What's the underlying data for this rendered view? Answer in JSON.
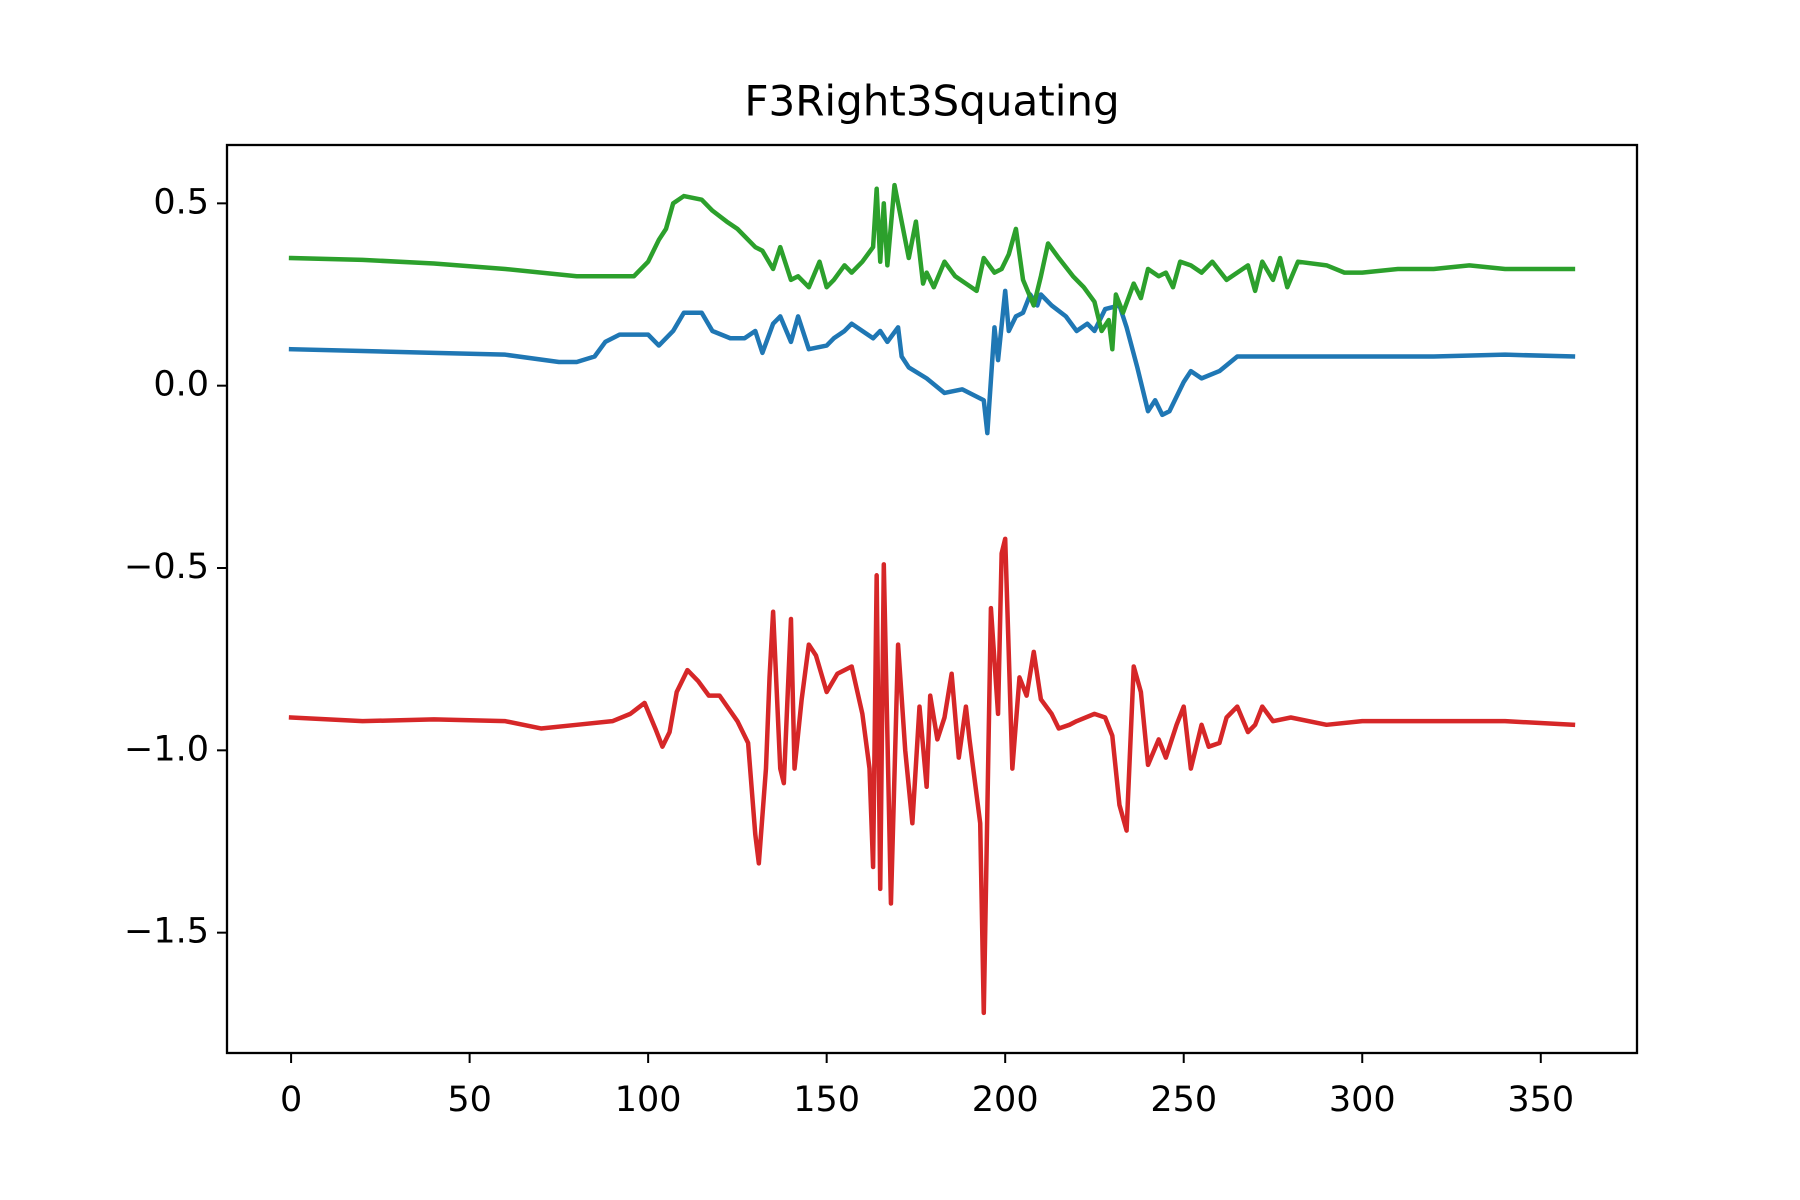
{
  "chart_data": {
    "type": "line",
    "title": "F3Right3Squating",
    "xlim": [
      -17.95,
      376.95
    ],
    "ylim": [
      -1.83,
      0.66
    ],
    "xticks": [
      0,
      50,
      100,
      150,
      200,
      250,
      300,
      350
    ],
    "yticks": [
      {
        "value": -1.5,
        "label": "−1.5"
      },
      {
        "value": -1.0,
        "label": "−1.0"
      },
      {
        "value": -0.5,
        "label": "−0.5"
      },
      {
        "value": 0.0,
        "label": "0.0"
      },
      {
        "value": 0.5,
        "label": "0.5"
      }
    ],
    "series": [
      {
        "color": "#1f77b4",
        "x": [
          0,
          20,
          40,
          60,
          75,
          80,
          85,
          88,
          92,
          100,
          103,
          107,
          110,
          115,
          118,
          123,
          127,
          130,
          132,
          135,
          137,
          140,
          142,
          145,
          150,
          152,
          155,
          157,
          160,
          163,
          165,
          167,
          170,
          171,
          173,
          178,
          183,
          188,
          192,
          194,
          195,
          197,
          198,
          200,
          201,
          203,
          205,
          207,
          209,
          210,
          213,
          217,
          220,
          223,
          225,
          228,
          232,
          234,
          237,
          240,
          242,
          244,
          246,
          250,
          252,
          255,
          260,
          265,
          270,
          280,
          300,
          320,
          340,
          359
        ],
        "values": [
          0.1,
          0.095,
          0.09,
          0.085,
          0.065,
          0.065,
          0.08,
          0.12,
          0.14,
          0.14,
          0.11,
          0.15,
          0.2,
          0.2,
          0.15,
          0.13,
          0.13,
          0.15,
          0.09,
          0.17,
          0.19,
          0.12,
          0.19,
          0.1,
          0.11,
          0.13,
          0.15,
          0.17,
          0.15,
          0.13,
          0.15,
          0.12,
          0.16,
          0.08,
          0.05,
          0.02,
          -0.02,
          -0.01,
          -0.03,
          -0.04,
          -0.13,
          0.16,
          0.07,
          0.26,
          0.15,
          0.19,
          0.2,
          0.25,
          0.22,
          0.25,
          0.22,
          0.19,
          0.15,
          0.17,
          0.15,
          0.21,
          0.22,
          0.16,
          0.05,
          -0.07,
          -0.04,
          -0.08,
          -0.07,
          0.01,
          0.04,
          0.02,
          0.04,
          0.08,
          0.08,
          0.08,
          0.08,
          0.08,
          0.085,
          0.08
        ]
      },
      {
        "color": "#2ca02c",
        "x": [
          0,
          20,
          40,
          60,
          80,
          90,
          96,
          100,
          103,
          105,
          107,
          110,
          115,
          118,
          122,
          125,
          130,
          132,
          135,
          137,
          140,
          142,
          145,
          148,
          150,
          152,
          155,
          157,
          160,
          163,
          164,
          165,
          166,
          167,
          169,
          171,
          173,
          175,
          177,
          178,
          180,
          183,
          186,
          189,
          192,
          194,
          197,
          199,
          201,
          203,
          205,
          208,
          210,
          212,
          215,
          219,
          222,
          225,
          227,
          229,
          230,
          231,
          233,
          236,
          238,
          240,
          243,
          245,
          247,
          249,
          252,
          255,
          258,
          262,
          265,
          268,
          270,
          272,
          275,
          277,
          279,
          282,
          290,
          295,
          300,
          310,
          320,
          330,
          340,
          350,
          359
        ],
        "values": [
          0.35,
          0.345,
          0.335,
          0.32,
          0.3,
          0.3,
          0.3,
          0.34,
          0.4,
          0.43,
          0.5,
          0.52,
          0.51,
          0.48,
          0.45,
          0.43,
          0.38,
          0.37,
          0.32,
          0.38,
          0.29,
          0.3,
          0.27,
          0.34,
          0.27,
          0.29,
          0.33,
          0.31,
          0.34,
          0.38,
          0.54,
          0.34,
          0.5,
          0.33,
          0.55,
          0.45,
          0.35,
          0.45,
          0.28,
          0.31,
          0.27,
          0.34,
          0.3,
          0.28,
          0.26,
          0.35,
          0.31,
          0.32,
          0.36,
          0.43,
          0.29,
          0.22,
          0.3,
          0.39,
          0.35,
          0.3,
          0.27,
          0.23,
          0.15,
          0.18,
          0.1,
          0.25,
          0.2,
          0.28,
          0.24,
          0.32,
          0.3,
          0.31,
          0.27,
          0.34,
          0.33,
          0.31,
          0.34,
          0.29,
          0.31,
          0.33,
          0.26,
          0.34,
          0.29,
          0.35,
          0.27,
          0.34,
          0.33,
          0.31,
          0.31,
          0.32,
          0.32,
          0.33,
          0.32,
          0.32,
          0.32
        ]
      },
      {
        "color": "#d62728",
        "x": [
          0,
          20,
          40,
          60,
          70,
          80,
          90,
          95,
          99,
          102,
          104,
          106,
          108,
          111,
          114,
          117,
          120,
          125,
          128,
          130,
          131,
          133,
          134,
          135,
          137,
          138,
          140,
          141,
          143,
          145,
          147,
          150,
          153,
          157,
          160,
          162,
          163,
          164,
          165,
          166,
          168,
          170,
          172,
          174,
          176,
          178,
          179,
          181,
          183,
          185,
          187,
          189,
          190,
          193,
          194,
          196,
          198,
          199,
          200,
          202,
          204,
          206,
          208,
          210,
          213,
          215,
          218,
          220,
          225,
          228,
          230,
          232,
          234,
          236,
          238,
          240,
          243,
          245,
          248,
          250,
          252,
          255,
          257,
          260,
          262,
          265,
          268,
          270,
          272,
          275,
          280,
          290,
          300,
          320,
          340,
          359
        ],
        "values": [
          -0.91,
          -0.92,
          -0.915,
          -0.92,
          -0.94,
          -0.93,
          -0.92,
          -0.9,
          -0.87,
          -0.94,
          -0.99,
          -0.95,
          -0.84,
          -0.78,
          -0.81,
          -0.85,
          -0.85,
          -0.92,
          -0.98,
          -1.23,
          -1.31,
          -1.05,
          -0.8,
          -0.62,
          -1.05,
          -1.09,
          -0.64,
          -1.05,
          -0.86,
          -0.71,
          -0.74,
          -0.84,
          -0.79,
          -0.77,
          -0.9,
          -1.05,
          -1.32,
          -0.52,
          -1.38,
          -0.49,
          -1.42,
          -0.71,
          -1.0,
          -1.2,
          -0.88,
          -1.1,
          -0.85,
          -0.97,
          -0.91,
          -0.79,
          -1.02,
          -0.88,
          -0.97,
          -1.2,
          -1.72,
          -0.61,
          -0.9,
          -0.46,
          -0.42,
          -1.05,
          -0.8,
          -0.85,
          -0.73,
          -0.86,
          -0.9,
          -0.94,
          -0.93,
          -0.92,
          -0.9,
          -0.91,
          -0.96,
          -1.15,
          -1.22,
          -0.77,
          -0.84,
          -1.04,
          -0.97,
          -1.02,
          -0.93,
          -0.88,
          -1.05,
          -0.93,
          -0.99,
          -0.98,
          -0.91,
          -0.88,
          -0.95,
          -0.93,
          -0.88,
          -0.92,
          -0.91,
          -0.93,
          -0.92,
          -0.92,
          -0.92,
          -0.93
        ]
      }
    ]
  }
}
